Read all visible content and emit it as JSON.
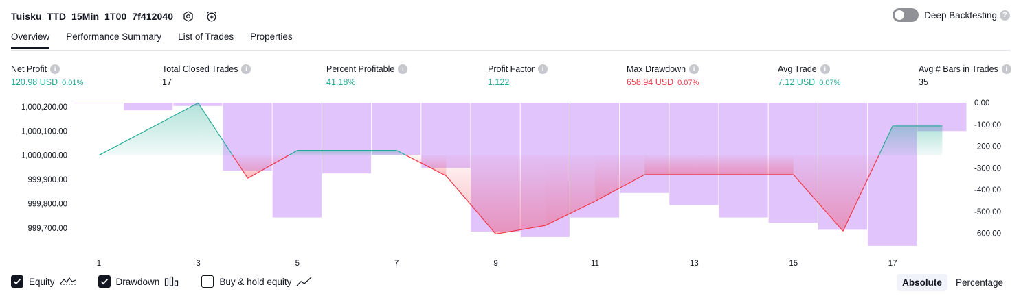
{
  "header": {
    "strategy_title": "Tuisku_TTD_15Min_1T00_7f412040",
    "icons": [
      "settings-icon",
      "alarm-add-icon"
    ]
  },
  "deep_backtesting": {
    "label": "Deep Backtesting",
    "enabled": false,
    "help": "?"
  },
  "tabs": [
    {
      "label": "Overview",
      "active": true
    },
    {
      "label": "Performance Summary",
      "active": false
    },
    {
      "label": "List of Trades",
      "active": false
    },
    {
      "label": "Properties",
      "active": false
    }
  ],
  "metrics": [
    {
      "label": "Net Profit",
      "value": "120.98 USD",
      "pct": "0.01%",
      "color": "green"
    },
    {
      "label": "Total Closed Trades",
      "value": "17",
      "pct": "",
      "color": "default"
    },
    {
      "label": "Percent Profitable",
      "value": "41.18%",
      "pct": "",
      "color": "green"
    },
    {
      "label": "Profit Factor",
      "value": "1.122",
      "pct": "",
      "color": "green"
    },
    {
      "label": "Max Drawdown",
      "value": "658.94 USD",
      "pct": "0.07%",
      "color": "red"
    },
    {
      "label": "Avg Trade",
      "value": "7.12 USD",
      "pct": "0.07%",
      "color": "green"
    },
    {
      "label": "Avg # Bars in Trades",
      "value": "35",
      "pct": "",
      "color": "default"
    }
  ],
  "chart_data": {
    "type": "line+bar",
    "x_ticks": [
      "1",
      "3",
      "5",
      "7",
      "9",
      "11",
      "13",
      "15",
      "17"
    ],
    "left_axis": {
      "ticks": [
        1000200,
        1000100,
        1000000,
        999900,
        999800,
        999700
      ],
      "tick_labels": [
        "1,000,200.00",
        "1,000,100.00",
        "1,000,000.00",
        "999,900.00",
        "999,800.00",
        "999,700.00"
      ],
      "baseline": 1000000
    },
    "right_axis": {
      "ticks": [
        0,
        -100,
        -200,
        -300,
        -400,
        -500,
        -600
      ],
      "tick_labels": [
        "0.00",
        "-100.00",
        "-200.00",
        "-300.00",
        "-400.00",
        "-500.00",
        "-600.00"
      ]
    },
    "series": [
      {
        "name": "Equity",
        "axis": "left",
        "x": [
          1,
          3,
          4,
          5,
          6,
          7,
          8,
          9,
          10,
          11,
          12,
          13,
          14,
          15,
          16,
          17,
          18
        ],
        "values": [
          1000000,
          1000216,
          999905,
          1000020,
          1000020,
          1000020,
          999915,
          999675,
          999710,
          999810,
          999920,
          999920,
          999920,
          999920,
          999687,
          1000121,
          1000121
        ],
        "up_color": "#22ab94",
        "down_color": "#f23645"
      },
      {
        "name": "Drawdown",
        "axis": "right",
        "type": "bar",
        "x": [
          1,
          2,
          3,
          4,
          5,
          6,
          7,
          8,
          9,
          10,
          11,
          12,
          13,
          14,
          15,
          16,
          17,
          18
        ],
        "values": [
          -1,
          -35,
          -15,
          -312,
          -528,
          -325,
          -240,
          -300,
          -592,
          -617,
          -528,
          -415,
          -471,
          -528,
          -552,
          -584,
          -658,
          -130
        ],
        "color": "#e1c4fc"
      }
    ]
  },
  "legend": [
    {
      "label": "Equity",
      "checked": true,
      "icon": "equity-line-icon"
    },
    {
      "label": "Drawdown",
      "checked": true,
      "icon": "drawdown-bars-icon"
    },
    {
      "label": "Buy & hold equity",
      "checked": false,
      "icon": "buy-hold-line-icon"
    }
  ],
  "mode": {
    "absolute": "Absolute",
    "percentage": "Percentage",
    "active": "absolute"
  }
}
